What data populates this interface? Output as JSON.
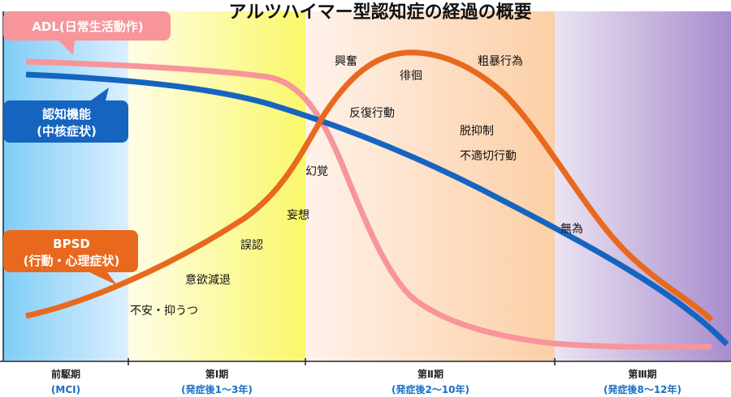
{
  "title": "アルツハイマー型認知症の経過の概要",
  "callouts": {
    "adl": "ADL(日常生活動作)",
    "cognition": [
      "認知機能",
      "(中核症状)"
    ],
    "bpsd": [
      "BPSD",
      "(行動・心理症状)"
    ]
  },
  "symptoms": [
    "不安・抑うつ",
    "意欲減退",
    "誤認",
    "妄想",
    "幻覚",
    "興奮",
    "反復行動",
    "徘徊",
    "粗暴行為",
    "脱抑制",
    "不適切行動",
    "無為"
  ],
  "phases": [
    {
      "name": "前駆期",
      "sub": "(MCI)"
    },
    {
      "name": "第Ⅰ期",
      "sub": "(発症後1～3年)"
    },
    {
      "name": "第Ⅱ期",
      "sub": "(発症後2～10年)"
    },
    {
      "name": "第Ⅲ期",
      "sub": "(発症後8～12年)"
    }
  ],
  "colors": {
    "adl": "#f7959a",
    "cognition": "#1565c0",
    "bpsd": "#e8691e"
  }
}
